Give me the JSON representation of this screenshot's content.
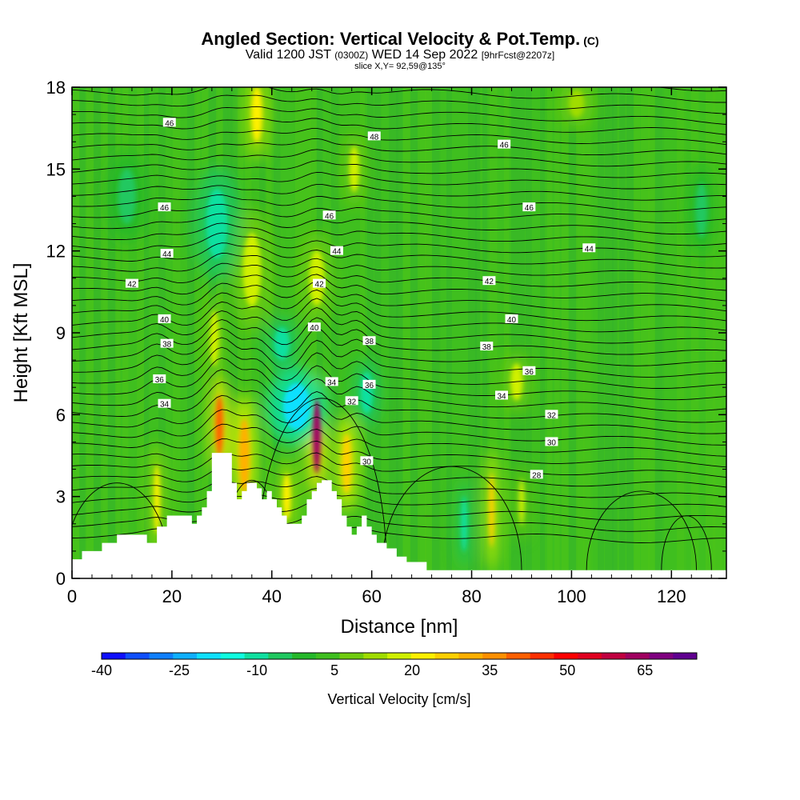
{
  "header": {
    "title_main": "Angled Section: Vertical Velocity & Pot.Temp.",
    "title_units": "(C)",
    "subtitle_a": "Valid 1200 JST",
    "subtitle_b": "(0300Z)",
    "subtitle_c": "WED 14 Sep 2022",
    "subtitle_d": "[9hrFcst@2207z]",
    "slice": "slice X,Y= 92,59@135°"
  },
  "chart_data": {
    "type": "heatmap",
    "xlabel": "Distance [nm]",
    "ylabel": "Height [Kft MSL]",
    "xlim": [
      0,
      131
    ],
    "ylim": [
      0,
      18
    ],
    "xticks": [
      "0",
      "20",
      "40",
      "60",
      "80",
      "100",
      "120"
    ],
    "yticks": [
      "0",
      "3",
      "6",
      "9",
      "12",
      "15",
      "18"
    ],
    "background_color": "#3fbf1f",
    "colorbar": {
      "title": "Vertical Velocity [cm/s]",
      "tick_labels": [
        "-40",
        "-25",
        "-10",
        "5",
        "20",
        "35",
        "50",
        "65"
      ],
      "tick_values": [
        -40,
        -25,
        -10,
        5,
        20,
        35,
        50,
        65
      ],
      "range": [
        -40,
        75
      ],
      "colors": [
        "#1010ff",
        "#1050ff",
        "#1080ff",
        "#10b0ff",
        "#10e0ff",
        "#10ffe0",
        "#10e0a0",
        "#20c860",
        "#25b82a",
        "#3fbf1f",
        "#70cc10",
        "#a0dd00",
        "#d0f000",
        "#fff000",
        "#ffd000",
        "#ffb000",
        "#ff9000",
        "#ff6000",
        "#ff3000",
        "#ff0000",
        "#e00020",
        "#c00040",
        "#a00060",
        "#800080",
        "#600090"
      ]
    },
    "terrain": [
      [
        0,
        0.7
      ],
      [
        2,
        1.0
      ],
      [
        6,
        1.3
      ],
      [
        9,
        1.6
      ],
      [
        13,
        1.6
      ],
      [
        15,
        1.3
      ],
      [
        17,
        1.9
      ],
      [
        19,
        2.3
      ],
      [
        23,
        2.3
      ],
      [
        24,
        2.0
      ],
      [
        25,
        2.3
      ],
      [
        26,
        2.6
      ],
      [
        27,
        3.2
      ],
      [
        28,
        4.6
      ],
      [
        31,
        4.6
      ],
      [
        32,
        3.5
      ],
      [
        33,
        2.9
      ],
      [
        34,
        3.2
      ],
      [
        35,
        3.5
      ],
      [
        37,
        3.3
      ],
      [
        38,
        2.9
      ],
      [
        39,
        3.2
      ],
      [
        40,
        2.9
      ],
      [
        41,
        2.6
      ],
      [
        42,
        2.3
      ],
      [
        43,
        2.0
      ],
      [
        45,
        2.0
      ],
      [
        46,
        2.3
      ],
      [
        47,
        2.9
      ],
      [
        48,
        3.2
      ],
      [
        49,
        3.5
      ],
      [
        50,
        3.6
      ],
      [
        51,
        3.6
      ],
      [
        52,
        3.2
      ],
      [
        53,
        2.9
      ],
      [
        54,
        2.3
      ],
      [
        55,
        1.9
      ],
      [
        56,
        1.6
      ],
      [
        57,
        1.9
      ],
      [
        58,
        2.3
      ],
      [
        59,
        1.9
      ],
      [
        60,
        1.6
      ],
      [
        61,
        1.3
      ],
      [
        63,
        1.1
      ],
      [
        65,
        0.8
      ],
      [
        67,
        0.6
      ],
      [
        71,
        0.3
      ],
      [
        131,
        0.3
      ]
    ],
    "velocity_features": [
      {
        "x": 17,
        "y": 2.9,
        "rx": 1.0,
        "ry": 1.5,
        "value": 22
      },
      {
        "x": 29.5,
        "y": 5.6,
        "rx": 1.3,
        "ry": 1.3,
        "value": 42
      },
      {
        "x": 28.5,
        "y": 8.8,
        "rx": 1.5,
        "ry": 1.2,
        "value": 16
      },
      {
        "x": 34.5,
        "y": 4.5,
        "rx": 1.8,
        "ry": 1.6,
        "value": 30
      },
      {
        "x": 36,
        "y": 11.3,
        "rx": 3.0,
        "ry": 1.6,
        "value": 16
      },
      {
        "x": 29,
        "y": 13.0,
        "rx": 3.5,
        "ry": 1.5,
        "value": -8
      },
      {
        "x": 37,
        "y": 17.0,
        "rx": 1.8,
        "ry": 1.2,
        "value": 20
      },
      {
        "x": 43,
        "y": 3.0,
        "rx": 1.3,
        "ry": 1.0,
        "value": 22
      },
      {
        "x": 49,
        "y": 5.2,
        "rx": 1.3,
        "ry": 1.6,
        "value": 62
      },
      {
        "x": 49,
        "y": 11.0,
        "rx": 2.5,
        "ry": 1.2,
        "value": 18
      },
      {
        "x": 45,
        "y": 6.3,
        "rx": 4.5,
        "ry": 1.0,
        "value": -18
      },
      {
        "x": 42,
        "y": 8.6,
        "rx": 2.5,
        "ry": 0.7,
        "value": -10
      },
      {
        "x": 55,
        "y": 4.2,
        "rx": 1.6,
        "ry": 1.3,
        "value": 28
      },
      {
        "x": 56.5,
        "y": 15.0,
        "rx": 1.6,
        "ry": 1.0,
        "value": 18
      },
      {
        "x": 59,
        "y": 6.8,
        "rx": 2.0,
        "ry": 0.9,
        "value": -12
      },
      {
        "x": 84,
        "y": 2.5,
        "rx": 0.9,
        "ry": 1.6,
        "value": 28
      },
      {
        "x": 90,
        "y": 2.8,
        "rx": 0.9,
        "ry": 1.0,
        "value": 18
      },
      {
        "x": 78.5,
        "y": 2.0,
        "rx": 1.0,
        "ry": 1.2,
        "value": -10
      },
      {
        "x": 89,
        "y": 7.2,
        "rx": 2.0,
        "ry": 0.8,
        "value": 16
      },
      {
        "x": 101,
        "y": 17.4,
        "rx": 2.5,
        "ry": 0.6,
        "value": 12
      },
      {
        "x": 11,
        "y": 14.0,
        "rx": 3.0,
        "ry": 1.2,
        "value": -5
      },
      {
        "x": 126,
        "y": 13.5,
        "rx": 2.0,
        "ry": 1.2,
        "value": -5
      }
    ],
    "isentrope_labels": [
      {
        "text": "46",
        "x": 19.5,
        "y": 16.7
      },
      {
        "text": "48",
        "x": 60.5,
        "y": 16.2
      },
      {
        "text": "46",
        "x": 86.5,
        "y": 15.9
      },
      {
        "text": "46",
        "x": 18.5,
        "y": 13.6
      },
      {
        "text": "46",
        "x": 51.5,
        "y": 13.3
      },
      {
        "text": "46",
        "x": 91.5,
        "y": 13.6
      },
      {
        "text": "44",
        "x": 19.0,
        "y": 11.9
      },
      {
        "text": "44",
        "x": 53.0,
        "y": 12.0
      },
      {
        "text": "44",
        "x": 103.5,
        "y": 12.1
      },
      {
        "text": "42",
        "x": 12.0,
        "y": 10.8
      },
      {
        "text": "42",
        "x": 49.5,
        "y": 10.8
      },
      {
        "text": "42",
        "x": 83.5,
        "y": 10.9
      },
      {
        "text": "40",
        "x": 18.5,
        "y": 9.5
      },
      {
        "text": "40",
        "x": 48.5,
        "y": 9.2
      },
      {
        "text": "40",
        "x": 88.0,
        "y": 9.5
      },
      {
        "text": "38",
        "x": 19.0,
        "y": 8.6
      },
      {
        "text": "38",
        "x": 59.5,
        "y": 8.7
      },
      {
        "text": "38",
        "x": 83.0,
        "y": 8.5
      },
      {
        "text": "36",
        "x": 17.5,
        "y": 7.3
      },
      {
        "text": "34",
        "x": 52.0,
        "y": 7.2
      },
      {
        "text": "36",
        "x": 59.5,
        "y": 7.1
      },
      {
        "text": "36",
        "x": 91.5,
        "y": 7.6
      },
      {
        "text": "34",
        "x": 18.5,
        "y": 6.4
      },
      {
        "text": "32",
        "x": 56.0,
        "y": 6.5
      },
      {
        "text": "34",
        "x": 86.0,
        "y": 6.7
      },
      {
        "text": "32",
        "x": 96.0,
        "y": 6.0
      },
      {
        "text": "30",
        "x": 59.0,
        "y": 4.3
      },
      {
        "text": "30",
        "x": 96.0,
        "y": 5.0
      },
      {
        "text": "28",
        "x": 93.0,
        "y": 3.8
      }
    ]
  }
}
